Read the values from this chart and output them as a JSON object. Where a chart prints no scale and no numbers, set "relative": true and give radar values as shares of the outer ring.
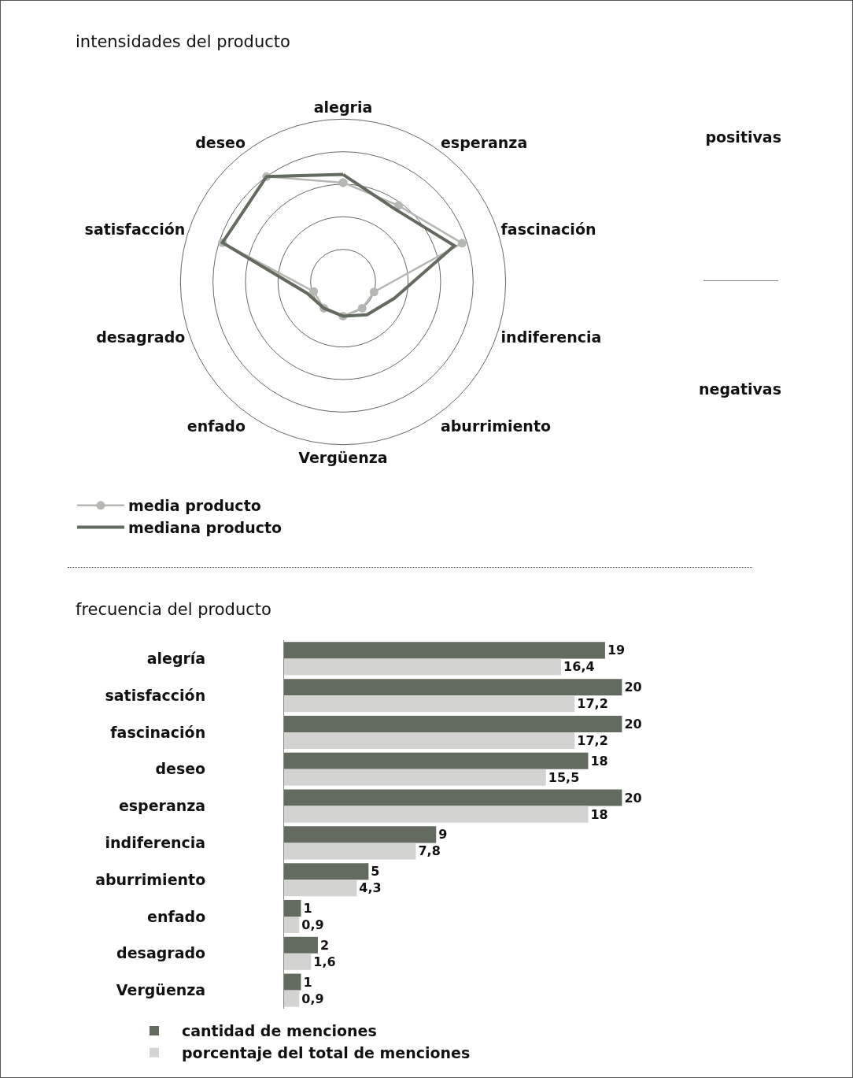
{
  "chart_data": [
    {
      "type": "radar",
      "title": "intensidades del producto",
      "categories": [
        "alegria",
        "esperanza",
        "fascinación",
        "indiferencia",
        "aburrimiento",
        "Vergüenza",
        "enfado",
        "desagrado",
        "satisfacción",
        "deseo"
      ],
      "relative": true,
      "grid": true,
      "legend": "bottom",
      "annotations": [
        "positivas",
        "negativas"
      ],
      "series": [
        {
          "name": "media producto",
          "color": "#b5b8b2",
          "marker": "circle",
          "values": [
            0.61,
            0.58,
            0.77,
            0.2,
            0.2,
            0.21,
            0.2,
            0.19,
            0.78,
            0.8
          ]
        },
        {
          "name": "mediana producto",
          "color": "#636b5f",
          "marker": "none",
          "values": [
            0.66,
            0.55,
            0.72,
            0.33,
            0.25,
            0.21,
            0.2,
            0.23,
            0.78,
            0.8
          ]
        }
      ]
    },
    {
      "type": "bar",
      "orientation": "horizontal",
      "title": "frecuencia del producto",
      "categories": [
        "alegría",
        "satisfacción",
        "fascinación",
        "deseo",
        "esperanza",
        "indiferencia",
        "aburrimiento",
        "enfado",
        "desagrado",
        "Vergüenza"
      ],
      "legend": "bottom",
      "series": [
        {
          "name": "cantidad de menciones",
          "color": "#636b5f",
          "values": [
            19,
            20,
            20,
            18,
            20,
            9,
            5,
            1,
            2,
            1
          ],
          "value_labels": [
            "19",
            "20",
            "20",
            "18",
            "20",
            "9",
            "5",
            "1",
            "2",
            "1"
          ]
        },
        {
          "name": "porcentaje del total de menciones",
          "color": "#d3d4d1",
          "values": [
            16.4,
            17.2,
            17.2,
            15.5,
            18,
            7.8,
            4.3,
            0.9,
            1.6,
            0.9
          ],
          "value_labels": [
            "16,4",
            "17,2",
            "17,2",
            "15,5",
            "18",
            "7,8",
            "4,3",
            "0,9",
            "1,6",
            "0,9"
          ]
        }
      ]
    }
  ]
}
